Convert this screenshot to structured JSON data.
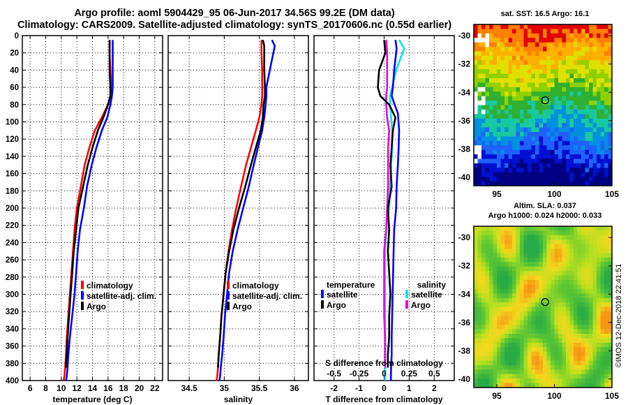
{
  "header": {
    "line1": "Argo profile: aoml 5904429_95 06-Jun-2017 34.56S 99.2E (DM data)",
    "line2": "Climatology: CARS2009. Satellite-adjusted climatology: synTS_20170606.nc (0.55d earlier)"
  },
  "colors": {
    "climatology": "#ff0000",
    "satellite_adj": "#0000ff",
    "argo": "#000000",
    "s_satellite": "#00e5ee",
    "s_argo": "#e600e6"
  },
  "chart_data": [
    {
      "type": "line",
      "title": "",
      "xlabel": "temperature (deg C)",
      "ylabel": "",
      "xlim": [
        5,
        23
      ],
      "ylim": [
        400,
        0
      ],
      "xticks": [
        "6",
        "8",
        "10",
        "12",
        "14",
        "16",
        "18",
        "20",
        "22"
      ],
      "xtick_values": [
        6,
        8,
        10,
        12,
        14,
        16,
        18,
        20,
        22
      ],
      "yticks": [
        "0",
        "20",
        "40",
        "60",
        "80",
        "100",
        "120",
        "140",
        "160",
        "180",
        "200",
        "220",
        "240",
        "260",
        "280",
        "300",
        "320",
        "340",
        "360",
        "380",
        "400"
      ],
      "ytick_values": [
        0,
        20,
        40,
        60,
        80,
        100,
        120,
        140,
        160,
        180,
        200,
        220,
        240,
        260,
        280,
        300,
        320,
        340,
        360,
        380,
        400
      ],
      "grid": true,
      "legend": [
        "climatology",
        "satellite-adj. clim.",
        "Argo"
      ],
      "legend_position": "lower-right",
      "series": [
        {
          "name": "climatology",
          "color": "#ff0000",
          "x": [
            16.2,
            16.2,
            16.3,
            16.4,
            16.3,
            16.0,
            15.2,
            14.3,
            13.6,
            13.0,
            12.5,
            12.0,
            11.7,
            11.5,
            11.3,
            11.1,
            10.9,
            10.7,
            10.6,
            10.5,
            10.4,
            10.3
          ],
          "y": [
            5,
            20,
            40,
            60,
            70,
            80,
            95,
            110,
            130,
            150,
            175,
            200,
            225,
            250,
            275,
            300,
            325,
            350,
            370,
            385,
            395,
            400
          ]
        },
        {
          "name": "satellite-adj. clim.",
          "color": "#0000ff",
          "x": [
            16.6,
            16.6,
            16.6,
            16.6,
            16.5,
            16.3,
            15.9,
            15.2,
            14.5,
            13.9,
            13.3,
            12.9,
            12.4,
            12.1,
            11.9,
            11.7,
            11.4,
            11.1,
            10.9,
            10.8,
            10.7,
            10.6
          ],
          "y": [
            5,
            20,
            40,
            60,
            70,
            80,
            95,
            110,
            130,
            150,
            175,
            200,
            225,
            250,
            275,
            300,
            325,
            350,
            370,
            385,
            395,
            400
          ]
        },
        {
          "name": "Argo",
          "color": "#000000",
          "x": [
            16.2,
            16.2,
            16.2,
            16.3,
            16.3,
            16.0,
            15.4,
            14.7,
            14.0,
            13.4,
            12.8,
            12.2,
            11.9,
            11.6,
            11.4,
            11.2,
            11.0,
            10.8,
            10.7,
            10.6
          ],
          "y": [
            5,
            20,
            40,
            60,
            70,
            80,
            95,
            110,
            130,
            150,
            175,
            200,
            225,
            250,
            275,
            300,
            325,
            350,
            370,
            385
          ]
        }
      ]
    },
    {
      "type": "line",
      "title": "",
      "xlabel": "salinity",
      "ylabel": "",
      "xlim": [
        34.2,
        36.2
      ],
      "ylim": [
        400,
        0
      ],
      "xticks": [
        "34.5",
        "35",
        "35.5",
        "36"
      ],
      "xtick_values": [
        34.5,
        35,
        35.5,
        36
      ],
      "grid": true,
      "legend": [
        "climatology",
        "satellite-adj. clim.",
        "Argo"
      ],
      "legend_position": "lower-right",
      "series": [
        {
          "name": "climatology",
          "color": "#ff0000",
          "x": [
            35.53,
            35.53,
            35.54,
            35.54,
            35.54,
            35.53,
            35.5,
            35.45,
            35.38,
            35.31,
            35.24,
            35.17,
            35.11,
            35.06,
            35.02,
            34.99,
            34.96,
            34.94,
            34.92,
            34.91,
            34.9,
            34.89
          ],
          "y": [
            5,
            20,
            40,
            60,
            70,
            80,
            95,
            110,
            130,
            150,
            175,
            200,
            225,
            250,
            275,
            300,
            325,
            350,
            370,
            385,
            395,
            400
          ]
        },
        {
          "name": "satellite-adj. clim.",
          "color": "#0000ff",
          "x": [
            35.68,
            35.72,
            35.65,
            35.6,
            35.6,
            35.59,
            35.57,
            35.54,
            35.48,
            35.42,
            35.35,
            35.27,
            35.19,
            35.12,
            35.07,
            35.04,
            35.01,
            34.99,
            34.97,
            34.95,
            34.94,
            34.93
          ],
          "y": [
            5,
            12,
            40,
            60,
            70,
            80,
            95,
            110,
            130,
            150,
            175,
            200,
            225,
            250,
            275,
            300,
            325,
            350,
            370,
            385,
            395,
            400
          ]
        },
        {
          "name": "Argo",
          "color": "#000000",
          "x": [
            35.55,
            35.57,
            35.57,
            35.58,
            35.58,
            35.56,
            35.55,
            35.52,
            35.45,
            35.38,
            35.3,
            35.21,
            35.13,
            35.07,
            35.02,
            34.99,
            34.96,
            34.94,
            34.92,
            34.91
          ],
          "y": [
            5,
            12,
            40,
            60,
            70,
            80,
            95,
            110,
            130,
            150,
            175,
            200,
            225,
            250,
            275,
            300,
            325,
            350,
            370,
            385
          ]
        }
      ]
    },
    {
      "type": "line",
      "title": "",
      "xlabel": "T difference from climatology",
      "xlabel_top": "S difference from climatology",
      "ylabel": "",
      "xlim": [
        -2.8,
        2.8
      ],
      "ylim": [
        400,
        0
      ],
      "xticks": [
        "-2",
        "-1",
        "0",
        "1",
        "2"
      ],
      "xtick_values": [
        -2,
        -1,
        0,
        1,
        2
      ],
      "xticks_s": [
        "-0.5",
        "-0.25",
        "0",
        "0.25",
        "0.5"
      ],
      "xtick_s_values": [
        -0.5,
        -0.25,
        0,
        0.25,
        0.5
      ],
      "grid": true,
      "legend": [
        "temperature",
        "satellite",
        "Argo",
        "salinity",
        "satellite",
        "Argo"
      ],
      "legend_position": "lower",
      "series": [
        {
          "name": "temperature satellite",
          "color": "#0000ff",
          "units": "deg C",
          "x": [
            0.45,
            0.5,
            0.4,
            0.35,
            0.3,
            0.42,
            0.55,
            0.6,
            0.58,
            0.55,
            0.5,
            0.48,
            0.4,
            0.38,
            0.36,
            0.34,
            0.32,
            0.3,
            0.3,
            0.28,
            0.27,
            0.27
          ],
          "y": [
            5,
            15,
            40,
            60,
            70,
            80,
            90,
            110,
            130,
            150,
            175,
            200,
            225,
            250,
            275,
            300,
            325,
            350,
            370,
            385,
            395,
            400
          ]
        },
        {
          "name": "temperature Argo",
          "color": "#000000",
          "units": "deg C",
          "x": [
            0.0,
            0.05,
            -0.2,
            -0.25,
            -0.15,
            0.2,
            0.45,
            0.35,
            0.3,
            0.25,
            0.3,
            0.15,
            0.2,
            0.15,
            0.2,
            0.25,
            0.2,
            0.2,
            0.15,
            0.15
          ],
          "y": [
            5,
            20,
            40,
            60,
            70,
            80,
            95,
            110,
            130,
            150,
            175,
            200,
            225,
            250,
            275,
            300,
            325,
            350,
            370,
            385
          ]
        },
        {
          "name": "salinity satellite",
          "color": "#00e5ee",
          "units": "PSU",
          "x": [
            0.15,
            0.2,
            0.12,
            0.08,
            0.06,
            0.06,
            0.07,
            0.08,
            0.08,
            0.07,
            0.06,
            0.05,
            0.02,
            0.01,
            0.01,
            0.01,
            0.01,
            0.01,
            0.01,
            0.01,
            0.01,
            0.01
          ],
          "y": [
            5,
            15,
            40,
            60,
            70,
            80,
            95,
            110,
            130,
            150,
            175,
            200,
            225,
            250,
            275,
            300,
            325,
            350,
            370,
            385,
            395,
            400
          ]
        },
        {
          "name": "salinity Argo",
          "color": "#e600e6",
          "units": "PSU",
          "x": [
            0.02,
            0.03,
            0.03,
            0.03,
            0.02,
            0.02,
            0.03,
            0.05,
            0.04,
            0.04,
            0.04,
            0.03,
            0.02,
            0.0,
            0.0,
            0.0,
            0.0,
            0.01,
            0.01,
            0.01
          ],
          "y": [
            5,
            20,
            40,
            60,
            70,
            80,
            95,
            110,
            130,
            150,
            175,
            200,
            225,
            250,
            275,
            300,
            325,
            350,
            370,
            385
          ]
        }
      ]
    },
    {
      "type": "heatmap",
      "title": "sat. SST: 16.5 Argo: 16.1",
      "variable": "sea surface temperature",
      "xlim": [
        93,
        105
      ],
      "ylim": [
        -40.6,
        -29.2
      ],
      "xticks": [
        "95",
        "100",
        "105"
      ],
      "xtick_values": [
        95,
        100,
        105
      ],
      "yticks": [
        "-30",
        "-32",
        "-34",
        "-36",
        "-38",
        "-40"
      ],
      "ytick_values": [
        -30,
        -32,
        -34,
        -36,
        -38,
        -40
      ],
      "marker": {
        "lon": 99.2,
        "lat": -34.56
      }
    },
    {
      "type": "heatmap",
      "title": "Altim. SLA: 0.037",
      "subtitle": "Argo h1000: 0.024 h2000: 0.033",
      "variable": "sea level anomaly",
      "xlim": [
        93,
        105
      ],
      "ylim": [
        -40.6,
        -29.2
      ],
      "xticks": [
        "95",
        "100",
        "105"
      ],
      "xtick_values": [
        95,
        100,
        105
      ],
      "yticks": [
        "-30",
        "-32",
        "-34",
        "-36",
        "-38",
        "-40"
      ],
      "ytick_values": [
        -30,
        -32,
        -34,
        -36,
        -38,
        -40
      ],
      "marker": {
        "lon": 99.2,
        "lat": -34.56
      }
    }
  ],
  "stamp": "©IMOS 12-Dec-2018 22:41:51"
}
